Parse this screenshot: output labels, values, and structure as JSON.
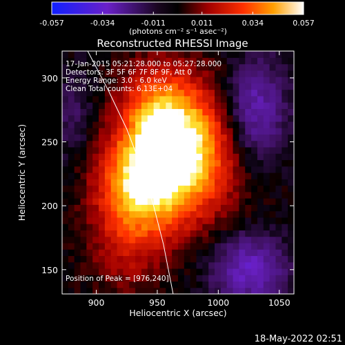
{
  "colorbar": {
    "ticks": [
      "-0.057",
      "-0.034",
      "-0.011",
      "0.011",
      "0.034",
      "0.057"
    ],
    "tick_values": [
      -0.057,
      -0.034,
      -0.011,
      0.011,
      0.034,
      0.057
    ],
    "range": [
      -0.057,
      0.057
    ],
    "unit_label": "(photons cm⁻² s⁻¹ asec⁻²)",
    "colormap": "red-temperature (blue-purple negative, black zero, red-orange-yellow-white positive)"
  },
  "chart_data": {
    "type": "heatmap",
    "title": "Reconstructed RHESSI Image",
    "xlabel": "Heliocentric X (arcsec)",
    "ylabel": "Heliocentric Y (arcsec)",
    "xlim": [
      872,
      1062
    ],
    "ylim": [
      131,
      321
    ],
    "x_ticks": [
      900,
      950,
      1000,
      1050
    ],
    "y_ticks": [
      150,
      200,
      250,
      300
    ],
    "x_tick_labels": [
      "900",
      "950",
      "1000",
      "1050"
    ],
    "y_tick_labels": [
      "150",
      "200",
      "250",
      "300"
    ],
    "annotations": [
      "17-Jan-2015 05:21:28.000 to 05:27:28.000",
      "Detectors: 3F 5F 6F 7F 8F 9F, Att 0",
      "Energy Range: 3.0 - 6.0 keV",
      "Clean    Total counts: 6.13E+04"
    ],
    "peak_label": "Position of Peak = [976,240]",
    "peak": [
      976,
      240
    ],
    "limb_curve": [
      [
        893,
        321
      ],
      [
        910,
        290
      ],
      [
        925,
        260
      ],
      [
        937,
        230
      ],
      [
        947,
        200
      ],
      [
        955,
        170
      ],
      [
        963,
        131
      ]
    ],
    "sources": [
      {
        "x": 970,
        "y": 243,
        "sx": 30,
        "sy": 36,
        "amp": 0.057
      },
      {
        "x": 935,
        "y": 218,
        "sx": 24,
        "sy": 26,
        "amp": 0.04
      },
      {
        "x": 948,
        "y": 275,
        "sx": 20,
        "sy": 24,
        "amp": 0.022
      },
      {
        "x": 925,
        "y": 170,
        "sx": 22,
        "sy": 28,
        "amp": 0.016
      },
      {
        "x": 1030,
        "y": 275,
        "sx": 18,
        "sy": 28,
        "amp": -0.03
      },
      {
        "x": 1025,
        "y": 150,
        "sx": 22,
        "sy": 20,
        "amp": -0.03
      },
      {
        "x": 880,
        "y": 270,
        "sx": 14,
        "sy": 24,
        "amp": -0.012
      }
    ]
  },
  "footer": {
    "timestamp": "18-May-2022 02:51"
  }
}
